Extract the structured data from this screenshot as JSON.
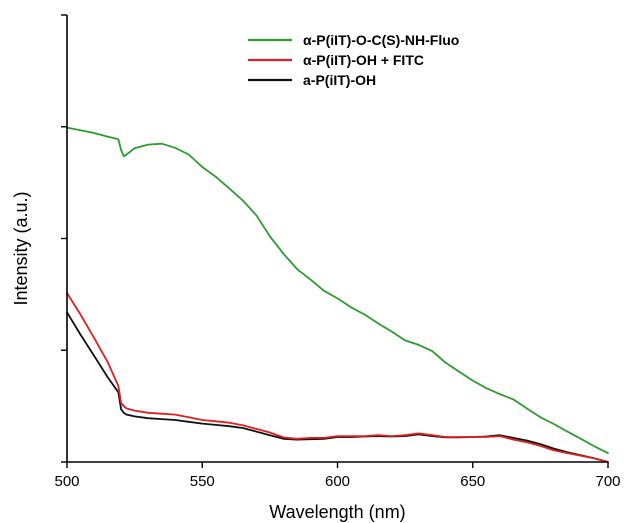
{
  "chart_data": {
    "type": "line",
    "title": "",
    "xlabel": "Wavelength (nm)",
    "ylabel": "Intensity (a.u.)",
    "xlim": [
      500,
      700
    ],
    "ylim": [
      0,
      1
    ],
    "xticks": [
      500,
      550,
      600,
      650,
      700
    ],
    "xtick_labels": [
      "500",
      "550",
      "600",
      "650",
      "700"
    ],
    "yticks_minor_unlabeled": [
      0,
      0.25,
      0.5,
      0.75,
      1.0
    ],
    "grid": false,
    "legend_position": "top-right",
    "series": [
      {
        "name": "α-P(iIT)-O-C(S)-NH-Fluo",
        "color": "#2e9b2e",
        "x": [
          500,
          505,
          510,
          515,
          519,
          520,
          521,
          522,
          525,
          530,
          535,
          540,
          545,
          550,
          555,
          560,
          565,
          570,
          575,
          580,
          585,
          590,
          595,
          600,
          605,
          610,
          615,
          620,
          625,
          630,
          635,
          640,
          645,
          650,
          655,
          660,
          665,
          670,
          675,
          680,
          685,
          690,
          695,
          700
        ],
        "y": [
          0.748,
          0.742,
          0.736,
          0.728,
          0.722,
          0.698,
          0.684,
          0.688,
          0.702,
          0.71,
          0.712,
          0.703,
          0.688,
          0.66,
          0.638,
          0.612,
          0.585,
          0.552,
          0.505,
          0.466,
          0.432,
          0.408,
          0.383,
          0.366,
          0.346,
          0.33,
          0.31,
          0.292,
          0.272,
          0.262,
          0.248,
          0.222,
          0.202,
          0.182,
          0.165,
          0.152,
          0.14,
          0.12,
          0.1,
          0.085,
          0.068,
          0.052,
          0.035,
          0.02
        ]
      },
      {
        "name": "α-P(iIT)-OH + FITC",
        "color": "#e02020",
        "x": [
          500,
          505,
          510,
          515,
          519,
          520,
          521,
          522,
          525,
          530,
          535,
          540,
          545,
          550,
          555,
          560,
          565,
          570,
          575,
          580,
          585,
          590,
          595,
          600,
          605,
          610,
          615,
          620,
          625,
          630,
          635,
          640,
          645,
          650,
          655,
          660,
          665,
          670,
          675,
          680,
          685,
          690,
          695,
          700
        ],
        "y": [
          0.378,
          0.33,
          0.278,
          0.224,
          0.17,
          0.132,
          0.125,
          0.12,
          0.115,
          0.11,
          0.108,
          0.106,
          0.1,
          0.094,
          0.091,
          0.088,
          0.082,
          0.074,
          0.066,
          0.055,
          0.052,
          0.054,
          0.054,
          0.058,
          0.058,
          0.058,
          0.06,
          0.058,
          0.06,
          0.064,
          0.06,
          0.056,
          0.056,
          0.056,
          0.056,
          0.058,
          0.05,
          0.044,
          0.036,
          0.026,
          0.02,
          0.014,
          0.008,
          0.0
        ]
      },
      {
        "name": "a-P(iIT)-OH",
        "color": "#111111",
        "x": [
          500,
          505,
          510,
          515,
          519,
          520,
          521,
          522,
          525,
          530,
          535,
          540,
          545,
          550,
          555,
          560,
          565,
          570,
          575,
          580,
          585,
          590,
          595,
          600,
          605,
          610,
          615,
          620,
          625,
          630,
          635,
          640,
          645,
          650,
          655,
          660,
          665,
          670,
          675,
          680,
          685,
          690,
          695,
          700
        ],
        "y": [
          0.335,
          0.285,
          0.238,
          0.19,
          0.156,
          0.118,
          0.11,
          0.106,
          0.102,
          0.098,
          0.096,
          0.094,
          0.09,
          0.086,
          0.083,
          0.08,
          0.076,
          0.068,
          0.06,
          0.052,
          0.05,
          0.051,
          0.052,
          0.056,
          0.056,
          0.057,
          0.058,
          0.057,
          0.058,
          0.062,
          0.058,
          0.055,
          0.055,
          0.056,
          0.057,
          0.06,
          0.054,
          0.048,
          0.04,
          0.03,
          0.022,
          0.015,
          0.008,
          0.0
        ]
      }
    ]
  }
}
